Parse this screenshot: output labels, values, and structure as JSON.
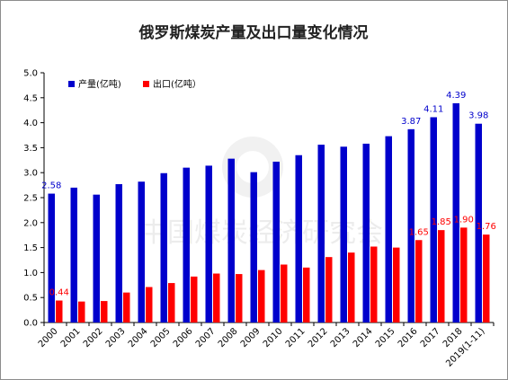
{
  "chart_data": {
    "type": "bar",
    "title": "俄罗斯煤炭产量及出口量变化情况",
    "categories": [
      "2000",
      "2001",
      "2002",
      "2003",
      "2004",
      "2005",
      "2006",
      "2007",
      "2008",
      "2009",
      "2010",
      "2011",
      "2012",
      "2013",
      "2014",
      "2015",
      "2016",
      "2017",
      "2018",
      "2019(1-11)"
    ],
    "series": [
      {
        "name": "产量(亿吨)",
        "color": "#0000CC",
        "values": [
          2.58,
          2.7,
          2.56,
          2.77,
          2.82,
          2.99,
          3.1,
          3.14,
          3.28,
          3.01,
          3.22,
          3.35,
          3.56,
          3.52,
          3.58,
          3.73,
          3.87,
          4.11,
          4.39,
          3.98
        ]
      },
      {
        "name": "出口(亿吨）",
        "color": "#FF0000",
        "values": [
          0.44,
          0.42,
          0.43,
          0.6,
          0.71,
          0.79,
          0.92,
          0.98,
          0.97,
          1.05,
          1.16,
          1.1,
          1.31,
          1.4,
          1.52,
          1.5,
          1.65,
          1.85,
          1.9,
          1.76
        ]
      }
    ],
    "data_labels": [
      {
        "series": 0,
        "index": 0,
        "text": "2.58"
      },
      {
        "series": 0,
        "index": 16,
        "text": "3.87"
      },
      {
        "series": 0,
        "index": 17,
        "text": "4.11"
      },
      {
        "series": 0,
        "index": 18,
        "text": "4.39"
      },
      {
        "series": 0,
        "index": 19,
        "text": "3.98"
      },
      {
        "series": 1,
        "index": 0,
        "text": "0.44"
      },
      {
        "series": 1,
        "index": 16,
        "text": "1.65"
      },
      {
        "series": 1,
        "index": 17,
        "text": "1.85"
      },
      {
        "series": 1,
        "index": 18,
        "text": "1.90"
      },
      {
        "series": 1,
        "index": 19,
        "text": "1.76"
      }
    ],
    "yticks": [
      "0.0",
      "0.5",
      "1.0",
      "1.5",
      "2.0",
      "2.5",
      "3.0",
      "3.5",
      "4.0",
      "4.5",
      "5.0"
    ],
    "ylim": [
      0,
      5
    ],
    "xlabel": "",
    "ylabel": "",
    "grid": false,
    "legend_position": "top-left"
  },
  "watermark": {
    "text": "中国煤炭经济研究会"
  }
}
